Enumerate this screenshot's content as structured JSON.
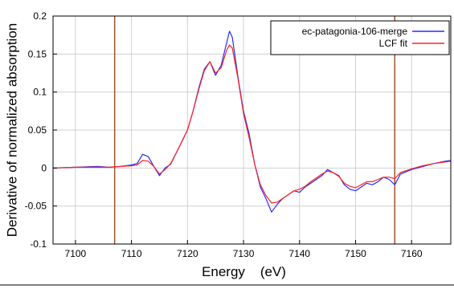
{
  "chart_data": {
    "type": "line",
    "title": "",
    "xlabel": "Energy    (eV)",
    "ylabel": "Derivative of normalized absorption",
    "xlim": [
      7096,
      7167
    ],
    "ylim": [
      -0.1,
      0.2
    ],
    "x_ticks": [
      7100,
      7110,
      7120,
      7130,
      7140,
      7150,
      7160
    ],
    "y_ticks": [
      -0.1,
      -0.05,
      0,
      0.05,
      0.1,
      0.15,
      0.2
    ],
    "y_tick_labels": [
      "-0.1",
      "-0.05",
      "0",
      "0.05",
      "0.1",
      "0.15",
      "0.2"
    ],
    "grid": true,
    "legend_position": "top-right",
    "vertical_markers": [
      {
        "x": 7107,
        "color": "#a0522d"
      },
      {
        "x": 7157,
        "color": "#a0522d"
      }
    ],
    "series": [
      {
        "name": "ec-patagonia-106-merge",
        "color": "#2a2aff",
        "x": [
          7096,
          7100,
          7104,
          7106,
          7108,
          7110,
          7111,
          7112,
          7113,
          7114,
          7115,
          7116,
          7117,
          7118,
          7119,
          7120,
          7121,
          7122,
          7123,
          7124,
          7125,
          7126,
          7127,
          7127.5,
          7128,
          7129,
          7130,
          7131,
          7132,
          7133,
          7134,
          7135,
          7136,
          7137,
          7138,
          7139,
          7140,
          7141,
          7142,
          7143,
          7144,
          7145,
          7146,
          7147,
          7148,
          7149,
          7150,
          7151,
          7152,
          7153,
          7154,
          7155,
          7156,
          7157,
          7158,
          7160,
          7162,
          7164,
          7166,
          7167
        ],
        "y": [
          0.0,
          0.001,
          0.002,
          0.001,
          0.002,
          0.004,
          0.006,
          0.018,
          0.015,
          0.002,
          -0.01,
          0.0,
          0.005,
          0.02,
          0.035,
          0.05,
          0.075,
          0.105,
          0.13,
          0.14,
          0.122,
          0.135,
          0.165,
          0.18,
          0.172,
          0.12,
          0.075,
          0.045,
          0.005,
          -0.025,
          -0.04,
          -0.058,
          -0.048,
          -0.04,
          -0.035,
          -0.03,
          -0.032,
          -0.025,
          -0.02,
          -0.015,
          -0.01,
          -0.002,
          -0.006,
          -0.01,
          -0.022,
          -0.028,
          -0.03,
          -0.025,
          -0.02,
          -0.022,
          -0.018,
          -0.012,
          -0.015,
          -0.022,
          -0.008,
          -0.002,
          0.002,
          0.006,
          0.009,
          0.01
        ]
      },
      {
        "name": "LCF fit",
        "color": "#ff2222",
        "x": [
          7096,
          7100,
          7104,
          7106,
          7108,
          7110,
          7111,
          7112,
          7113,
          7114,
          7115,
          7116,
          7117,
          7118,
          7119,
          7120,
          7121,
          7122,
          7123,
          7124,
          7125,
          7126,
          7127,
          7127.5,
          7128,
          7129,
          7130,
          7131,
          7132,
          7133,
          7134,
          7135,
          7136,
          7137,
          7138,
          7139,
          7140,
          7141,
          7142,
          7143,
          7144,
          7145,
          7146,
          7147,
          7148,
          7149,
          7150,
          7151,
          7152,
          7153,
          7154,
          7155,
          7156,
          7157,
          7158,
          7160,
          7162,
          7164,
          7166,
          7167
        ],
        "y": [
          0.0,
          0.001,
          0.001,
          0.001,
          0.002,
          0.003,
          0.004,
          0.01,
          0.009,
          0.002,
          -0.008,
          -0.002,
          0.006,
          0.02,
          0.035,
          0.05,
          0.075,
          0.103,
          0.128,
          0.14,
          0.125,
          0.132,
          0.155,
          0.162,
          0.158,
          0.118,
          0.072,
          0.04,
          0.005,
          -0.022,
          -0.036,
          -0.046,
          -0.045,
          -0.04,
          -0.035,
          -0.03,
          -0.028,
          -0.024,
          -0.018,
          -0.013,
          -0.008,
          -0.004,
          -0.006,
          -0.011,
          -0.02,
          -0.024,
          -0.026,
          -0.022,
          -0.018,
          -0.018,
          -0.015,
          -0.012,
          -0.012,
          -0.014,
          -0.006,
          -0.001,
          0.003,
          0.006,
          0.008,
          0.009
        ]
      }
    ]
  }
}
